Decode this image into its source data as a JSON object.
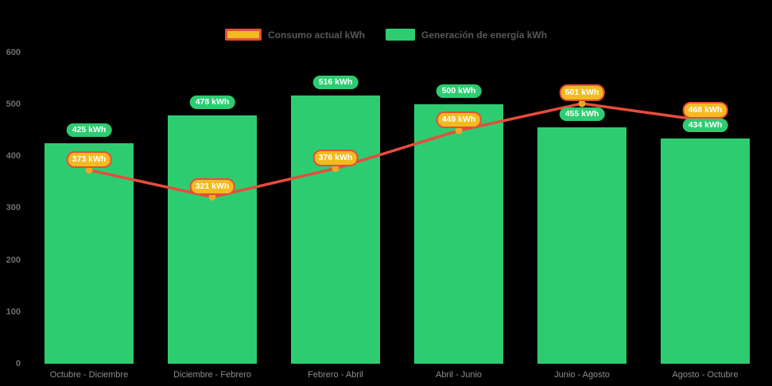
{
  "legend": {
    "consumo_label": "Consumo actual kWh",
    "generacion_label": "Generación de energía kWh"
  },
  "colors": {
    "background": "#000000",
    "bar_green": "#2ecc71",
    "line_red": "#e74c3c",
    "dot_orange": "#f5a623",
    "pill_yellow_fill": "#f2bb20",
    "pill_yellow_border": "#e74c3c",
    "pill_green_fill": "#2ecc71",
    "y_axis_text": "#6e6e6e",
    "x_axis_text": "#8e8e8e",
    "legend_text": "#585858"
  },
  "chart_data": {
    "type": "bar",
    "subtype": "bar-with-line-overlay",
    "categories": [
      "Octubre - Diciembre",
      "Diciembre - Febrero",
      "Febrero - Abril",
      "Abril - Junio",
      "Junio - Agosto",
      "Agosto - Octubre"
    ],
    "series": [
      {
        "name": "Consumo actual kWh",
        "type": "line",
        "color": "#e74c3c",
        "point_color": "#f5a623",
        "values": [
          373,
          321,
          376,
          449,
          501,
          468
        ]
      },
      {
        "name": "Generación de energía kWh",
        "type": "bar",
        "color": "#2ecc71",
        "values": [
          425,
          478,
          516,
          500,
          455,
          434
        ]
      }
    ],
    "unit": "kWh",
    "data_label_format": "{value} kWh",
    "yticks": [
      0,
      100,
      200,
      300,
      400,
      500,
      600
    ],
    "ylim": [
      0,
      600
    ],
    "xlabel": "",
    "ylabel": "",
    "title": "",
    "grid": false,
    "legend_position": "top"
  }
}
